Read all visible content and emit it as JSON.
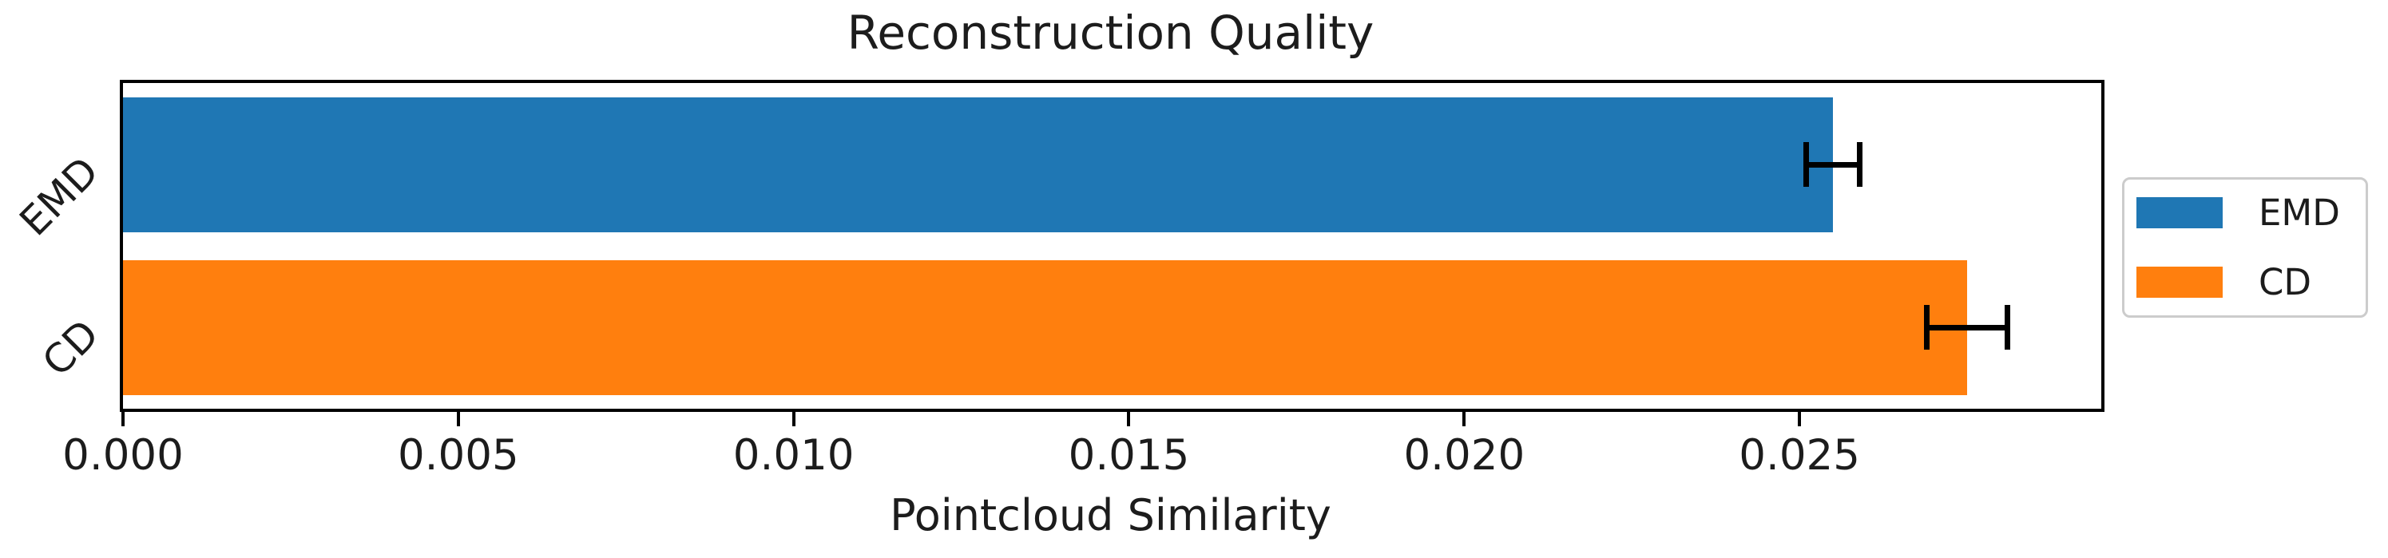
{
  "chart_data": {
    "type": "bar",
    "orientation": "horizontal",
    "title": "Reconstruction Quality",
    "xlabel": "Pointcloud Similarity",
    "ylabel": "",
    "categories": [
      "EMD",
      "CD"
    ],
    "values": [
      0.0255,
      0.0275
    ],
    "errors": [
      0.0004,
      0.0006
    ],
    "bar_colors": [
      "#1f77b4",
      "#ff7f0e"
    ],
    "error_color": "#000000",
    "xlim": [
      0,
      0.0295
    ],
    "xticks": [
      0.0,
      0.005,
      0.01,
      0.015,
      0.02,
      0.025
    ],
    "xtick_labels": [
      "0.000",
      "0.005",
      "0.010",
      "0.015",
      "0.020",
      "0.025"
    ],
    "grid": false,
    "background_color": "#ffffff",
    "spine_color": "#000000",
    "legend": {
      "position": "right",
      "entries": [
        {
          "label": "EMD",
          "color": "#1f77b4"
        },
        {
          "label": "CD",
          "color": "#ff7f0e"
        }
      ]
    }
  }
}
